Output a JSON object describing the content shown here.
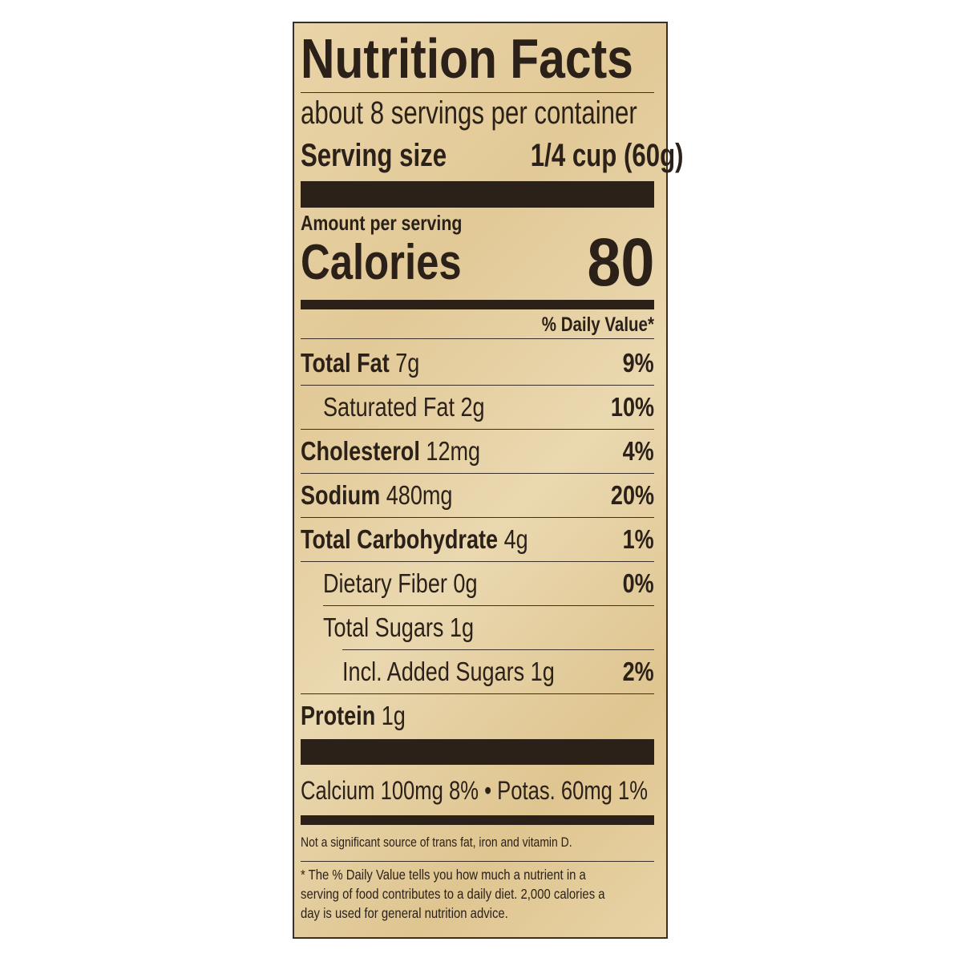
{
  "title": "Nutrition Facts",
  "servings_per_container": "about 8 servings per container",
  "serving_size": {
    "label": "Serving size",
    "value": "1/4 cup (60g)"
  },
  "amount_per_serving": "Amount per serving",
  "calories": {
    "label": "Calories",
    "value": "80"
  },
  "daily_value_header": "% Daily Value*",
  "nutrients": [
    {
      "name": "Total Fat",
      "amount": "7g",
      "dv": "9%",
      "bold": true,
      "indent": 0
    },
    {
      "name": "Saturated Fat",
      "amount": "2g",
      "dv": "10%",
      "bold": false,
      "indent": 1
    },
    {
      "name": "Cholesterol",
      "amount": "12mg",
      "dv": "4%",
      "bold": true,
      "indent": 0
    },
    {
      "name": "Sodium",
      "amount": "480mg",
      "dv": "20%",
      "bold": true,
      "indent": 0
    },
    {
      "name": "Total Carbohydrate",
      "amount": "4g",
      "dv": "1%",
      "bold": true,
      "indent": 0
    },
    {
      "name": "Dietary Fiber",
      "amount": "0g",
      "dv": "0%",
      "bold": false,
      "indent": 1
    },
    {
      "name": "Total Sugars",
      "amount": "1g",
      "dv": "",
      "bold": false,
      "indent": 1
    },
    {
      "name": "Incl. Added Sugars",
      "amount": "1g",
      "dv": "2%",
      "bold": false,
      "indent": 2
    },
    {
      "name": "Protein",
      "amount": "1g",
      "dv": "",
      "bold": true,
      "indent": 0
    }
  ],
  "minerals": "Calcium 100mg 8% • Potas. 60mg 1%",
  "not_significant": "Not a significant source of trans fat, iron and vitamin D.",
  "footnote": "* The % Daily Value tells you how much a nutrient in a serving of food contributes to a daily diet. 2,000 calories a day is used for general nutrition advice.",
  "colors": {
    "ink": "#2b2119",
    "paper": "#e6cfa0"
  }
}
